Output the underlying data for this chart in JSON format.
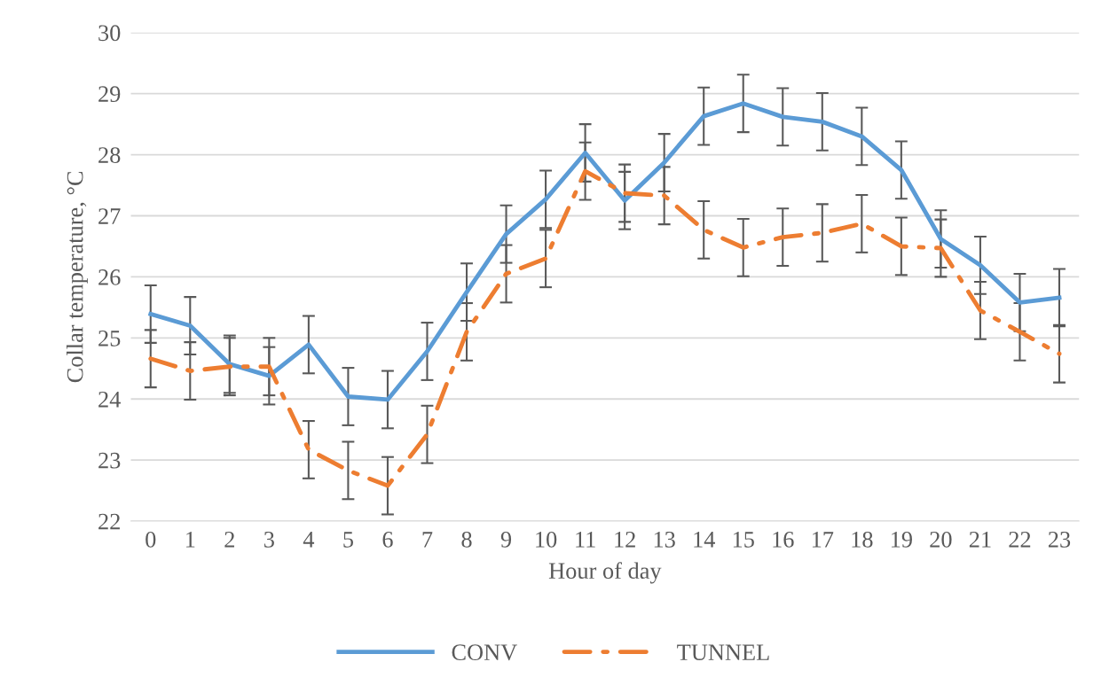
{
  "chart_data": {
    "type": "line",
    "xlabel": "Hour of day",
    "ylabel": "Collar temperature, °C",
    "categories": [
      "0",
      "1",
      "2",
      "3",
      "4",
      "5",
      "6",
      "7",
      "8",
      "9",
      "10",
      "11",
      "12",
      "13",
      "14",
      "15",
      "16",
      "17",
      "18",
      "19",
      "20",
      "21",
      "22",
      "23"
    ],
    "ylim": [
      22,
      30
    ],
    "yticks": [
      22,
      23,
      24,
      25,
      26,
      27,
      28,
      29,
      30
    ],
    "grid": "y",
    "legend": "bottom",
    "marker": "none",
    "series": [
      {
        "name": "CONV",
        "color": "#5b9bd5",
        "line_style": "solid",
        "values": [
          25.39,
          25.2,
          24.57,
          24.38,
          24.89,
          24.04,
          23.99,
          24.78,
          25.75,
          26.7,
          27.27,
          28.03,
          27.25,
          27.87,
          28.63,
          28.84,
          28.62,
          28.54,
          28.3,
          27.75,
          26.62,
          26.19,
          25.58,
          25.66
        ],
        "errors": [
          0.47,
          0.47,
          0.47,
          0.47,
          0.47,
          0.47,
          0.47,
          0.47,
          0.47,
          0.47,
          0.47,
          0.47,
          0.47,
          0.47,
          0.47,
          0.47,
          0.47,
          0.47,
          0.47,
          0.47,
          0.47,
          0.47,
          0.47,
          0.47
        ]
      },
      {
        "name": "TUNNEL",
        "color": "#ed7d31",
        "line_style": "dashed",
        "values": [
          24.66,
          24.46,
          24.53,
          24.53,
          23.17,
          22.83,
          22.58,
          23.42,
          25.1,
          26.05,
          26.3,
          27.73,
          27.37,
          27.33,
          26.77,
          26.48,
          26.65,
          26.72,
          26.87,
          26.5,
          26.47,
          25.45,
          25.1,
          24.74
        ],
        "errors": [
          0.47,
          0.47,
          0.47,
          0.47,
          0.47,
          0.47,
          0.47,
          0.47,
          0.47,
          0.47,
          0.47,
          0.47,
          0.47,
          0.47,
          0.47,
          0.47,
          0.47,
          0.47,
          0.47,
          0.47,
          0.47,
          0.47,
          0.47,
          0.47
        ]
      }
    ]
  }
}
